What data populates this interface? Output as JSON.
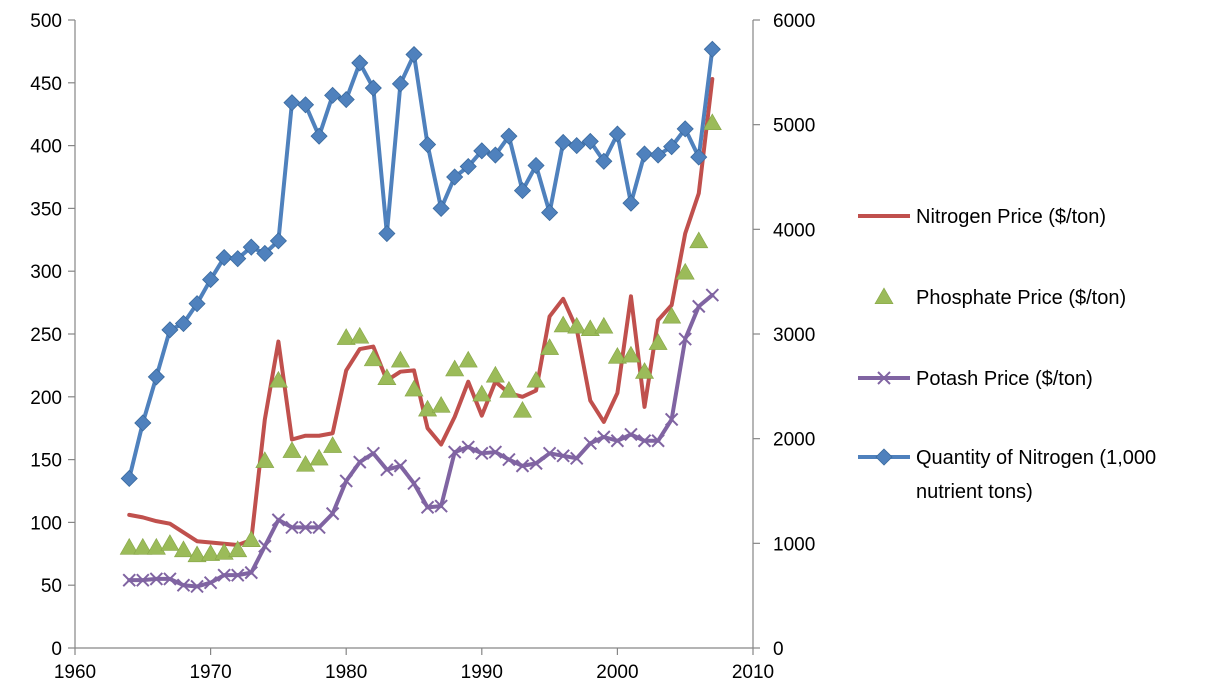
{
  "chart_data": {
    "type": "line",
    "x_range": [
      1960,
      2010
    ],
    "x_ticks": [
      "1960",
      "1970",
      "1980",
      "1990",
      "2000",
      "2010"
    ],
    "y_left_range": [
      0,
      500
    ],
    "y_left_ticks": [
      "0",
      "50",
      "100",
      "150",
      "200",
      "250",
      "300",
      "350",
      "400",
      "450",
      "500"
    ],
    "y_right_range": [
      0,
      6000
    ],
    "y_right_ticks": [
      "0",
      "1000",
      "2000",
      "3000",
      "4000",
      "5000",
      "6000"
    ],
    "grid": false,
    "legend_position": "right",
    "x": [
      1964,
      1965,
      1966,
      1967,
      1968,
      1969,
      1970,
      1971,
      1972,
      1973,
      1974,
      1975,
      1976,
      1977,
      1978,
      1979,
      1980,
      1981,
      1982,
      1983,
      1984,
      1985,
      1986,
      1987,
      1988,
      1989,
      1990,
      1991,
      1992,
      1993,
      1994,
      1995,
      1996,
      1997,
      1998,
      1999,
      2000,
      2001,
      2002,
      2003,
      2004,
      2005,
      2006,
      2007
    ],
    "series": [
      {
        "name": "Nitrogen Price ($/ton)",
        "axis": "left",
        "style": "line",
        "color": "#C0504D",
        "values": [
          106,
          104,
          101,
          99,
          92,
          85,
          84,
          83,
          82,
          86,
          182,
          244,
          166,
          169,
          169,
          171,
          221,
          238,
          240,
          213,
          220,
          221,
          175,
          162,
          184,
          212,
          185,
          212,
          203,
          200,
          205,
          264,
          278,
          254,
          197,
          180,
          203,
          280,
          192,
          261,
          273,
          330,
          362,
          453
        ]
      },
      {
        "name": "Phosphate Price ($/ton)",
        "axis": "left",
        "style": "markers",
        "marker": "triangle",
        "color": "#9BBB59",
        "values": [
          80,
          80,
          80,
          83,
          78,
          74,
          75,
          76,
          78,
          86,
          149,
          213,
          157,
          146,
          151,
          161,
          247,
          248,
          230,
          215,
          229,
          206,
          190,
          193,
          222,
          229,
          202,
          217,
          205,
          189,
          213,
          239,
          257,
          256,
          254,
          256,
          232,
          233,
          220,
          243,
          264,
          299,
          324,
          418
        ]
      },
      {
        "name": "Potash Price ($/ton)",
        "axis": "left",
        "style": "line+markers",
        "marker": "x",
        "color": "#8064A2",
        "values": [
          54,
          54,
          55,
          55,
          50,
          49,
          52,
          58,
          58,
          60,
          81,
          102,
          96,
          96,
          96,
          107,
          133,
          148,
          155,
          142,
          145,
          131,
          112,
          113,
          156,
          160,
          155,
          156,
          150,
          145,
          147,
          155,
          153,
          151,
          163,
          168,
          165,
          170,
          165,
          165,
          182,
          246,
          272,
          281
        ]
      },
      {
        "name": "Quantity of Nitrogen (1,000 nutrient tons)",
        "axis": "right",
        "style": "line+markers",
        "marker": "diamond",
        "color": "#4F81BD",
        "values": [
          1620,
          2150,
          2590,
          3040,
          3100,
          3290,
          3520,
          3730,
          3720,
          3830,
          3770,
          3890,
          5210,
          5190,
          4890,
          5280,
          5240,
          5590,
          5350,
          3960,
          5390,
          5670,
          4810,
          4200,
          4500,
          4600,
          4750,
          4710,
          4890,
          4370,
          4610,
          4160,
          4830,
          4800,
          4840,
          4650,
          4910,
          4250,
          4720,
          4710,
          4790,
          4960,
          4690,
          5720
        ]
      }
    ]
  }
}
